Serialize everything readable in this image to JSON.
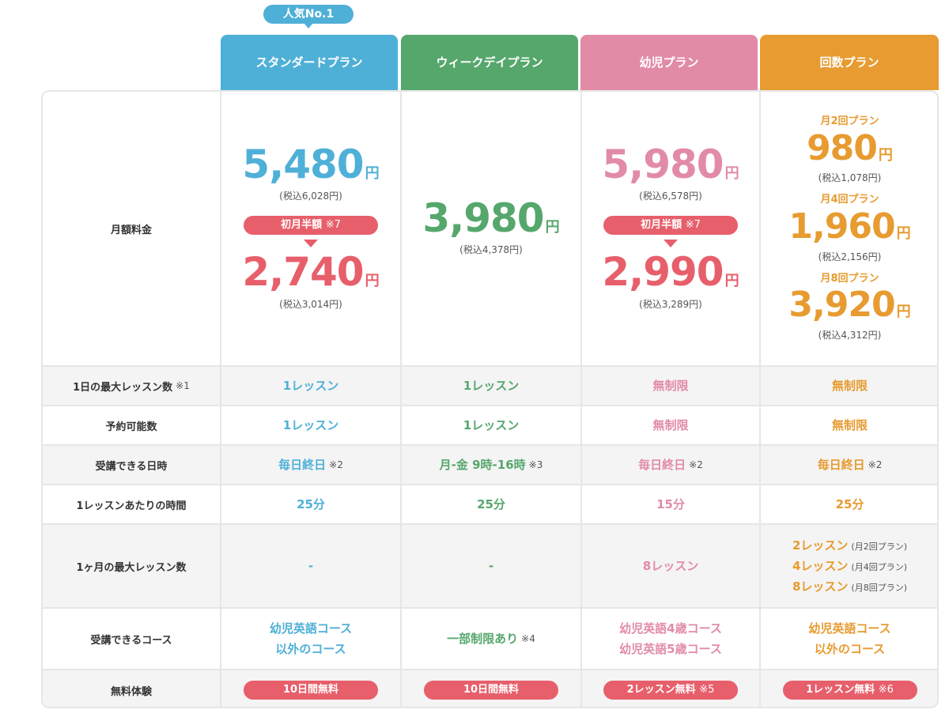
{
  "badge": "人気No.1",
  "plans": [
    {
      "name": "スタンダードプラン",
      "color": "#4fb0d7"
    },
    {
      "name": "ウィークデイプラン",
      "color": "#56a76c"
    },
    {
      "name": "幼児プラン",
      "color": "#e28ba7"
    },
    {
      "name": "回数プラン",
      "color": "#e79b30"
    }
  ],
  "labels": {
    "monthly": "月額料金",
    "max_daily": "1日の最大レッスン数",
    "max_daily_note": "※1",
    "reservations": "予約可能数",
    "schedule": "受講できる日時",
    "duration": "1レッスンあたりの時間",
    "max_monthly": "1ヶ月の最大レッスン数",
    "courses": "受講できるコース",
    "trial": "無料体験"
  },
  "pricing": {
    "yen": "円",
    "half_label": "初月半額",
    "half_note": "※7",
    "standard": {
      "price": "5,480",
      "tax": "(税込6,028円)",
      "half_price": "2,740",
      "half_tax": "(税込3,014円)"
    },
    "weekday": {
      "price": "3,980",
      "tax": "(税込4,378円)"
    },
    "kids": {
      "price": "5,980",
      "tax": "(税込6,578円)",
      "half_price": "2,990",
      "half_tax": "(税込3,289円)"
    },
    "count": [
      {
        "name": "月2回プラン",
        "price": "980",
        "tax": "(税込1,078円)"
      },
      {
        "name": "月4回プラン",
        "price": "1,960",
        "tax": "(税込2,156円)"
      },
      {
        "name": "月8回プラン",
        "price": "3,920",
        "tax": "(税込4,312円)"
      }
    ]
  },
  "max_daily": [
    "1レッスン",
    "1レッスン",
    "無制限",
    "無制限"
  ],
  "reservations": [
    "1レッスン",
    "1レッスン",
    "無制限",
    "無制限"
  ],
  "schedule": [
    {
      "text": "毎日終日",
      "note": "※2"
    },
    {
      "text": "月-金 9時-16時",
      "note": "※3"
    },
    {
      "text": "毎日終日",
      "note": "※2"
    },
    {
      "text": "毎日終日",
      "note": "※2"
    }
  ],
  "duration": [
    "25分",
    "25分",
    "15分",
    "25分"
  ],
  "max_monthly": {
    "standard": "-",
    "weekday": "-",
    "kids": "8レッスン",
    "count": [
      {
        "text": "2レッスン",
        "note": "(月2回プラン)"
      },
      {
        "text": "4レッスン",
        "note": "(月4回プラン)"
      },
      {
        "text": "8レッスン",
        "note": "(月8回プラン)"
      }
    ]
  },
  "courses": {
    "standard": [
      "幼児英語コース",
      "以外のコース"
    ],
    "weekday": {
      "text": "一部制限あり",
      "note": "※4"
    },
    "kids": [
      "幼児英語4歳コース",
      "幼児英語5歳コース"
    ],
    "count": [
      "幼児英語コース",
      "以外のコース"
    ]
  },
  "trial": [
    {
      "text": "10日間無料",
      "note": ""
    },
    {
      "text": "10日間無料",
      "note": ""
    },
    {
      "text": "2レッスン無料",
      "note": "※5"
    },
    {
      "text": "1レッスン無料",
      "note": "※6"
    }
  ]
}
